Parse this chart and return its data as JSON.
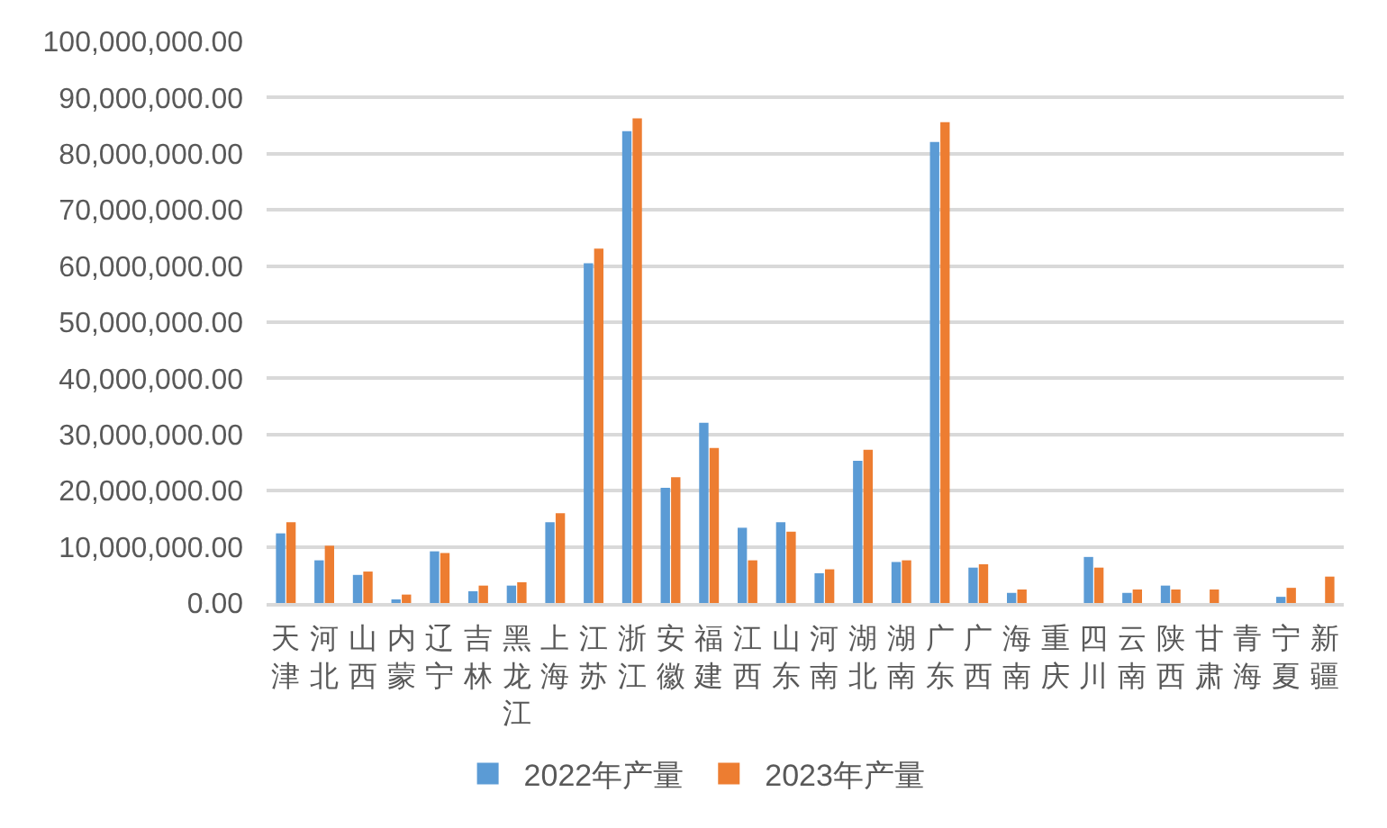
{
  "chart_data": {
    "type": "bar",
    "categories": [
      "天津",
      "河北",
      "山西",
      "内蒙",
      "辽宁",
      "吉林",
      "黑龙江",
      "上海",
      "江苏",
      "浙江",
      "安徽",
      "福建",
      "江西",
      "山东",
      "河南",
      "湖北",
      "湖南",
      "广东",
      "广西",
      "海南",
      "重庆",
      "四川",
      "云南",
      "陕西",
      "甘肃",
      "青海",
      "宁夏",
      "新疆"
    ],
    "series": [
      {
        "name": "2022年产量",
        "color": "#5b9bd5",
        "values": [
          12400000,
          7600000,
          5000000,
          500000,
          9200000,
          2100000,
          3100000,
          14400000,
          60500000,
          84000000,
          20500000,
          32100000,
          13400000,
          14400000,
          5300000,
          25300000,
          7300000,
          82100000,
          6300000,
          1800000,
          null,
          8200000,
          1800000,
          3100000,
          null,
          null,
          1100000,
          null
        ]
      },
      {
        "name": "2023年产量",
        "color": "#ed7d31",
        "values": [
          14400000,
          10200000,
          5600000,
          1500000,
          8900000,
          3100000,
          3700000,
          16000000,
          63100000,
          86300000,
          22400000,
          27600000,
          7600000,
          12700000,
          6000000,
          27300000,
          7600000,
          85600000,
          6900000,
          2400000,
          null,
          6300000,
          2400000,
          2400000,
          2400000,
          null,
          2700000,
          4700000
        ]
      }
    ],
    "ylim": [
      0,
      100000000
    ],
    "yticks": [
      {
        "value": 0,
        "label": "0.00"
      },
      {
        "value": 10000000,
        "label": "10,000,000.00"
      },
      {
        "value": 20000000,
        "label": "20,000,000.00"
      },
      {
        "value": 30000000,
        "label": "30,000,000.00"
      },
      {
        "value": 40000000,
        "label": "40,000,000.00"
      },
      {
        "value": 50000000,
        "label": "50,000,000.00"
      },
      {
        "value": 60000000,
        "label": "60,000,000.00"
      },
      {
        "value": 70000000,
        "label": "70,000,000.00"
      },
      {
        "value": 80000000,
        "label": "80,000,000.00"
      },
      {
        "value": 90000000,
        "label": "90,000,000.00"
      },
      {
        "value": 100000000,
        "label": "100,000,000.00"
      }
    ],
    "grid": "y",
    "legend": "bottom"
  }
}
